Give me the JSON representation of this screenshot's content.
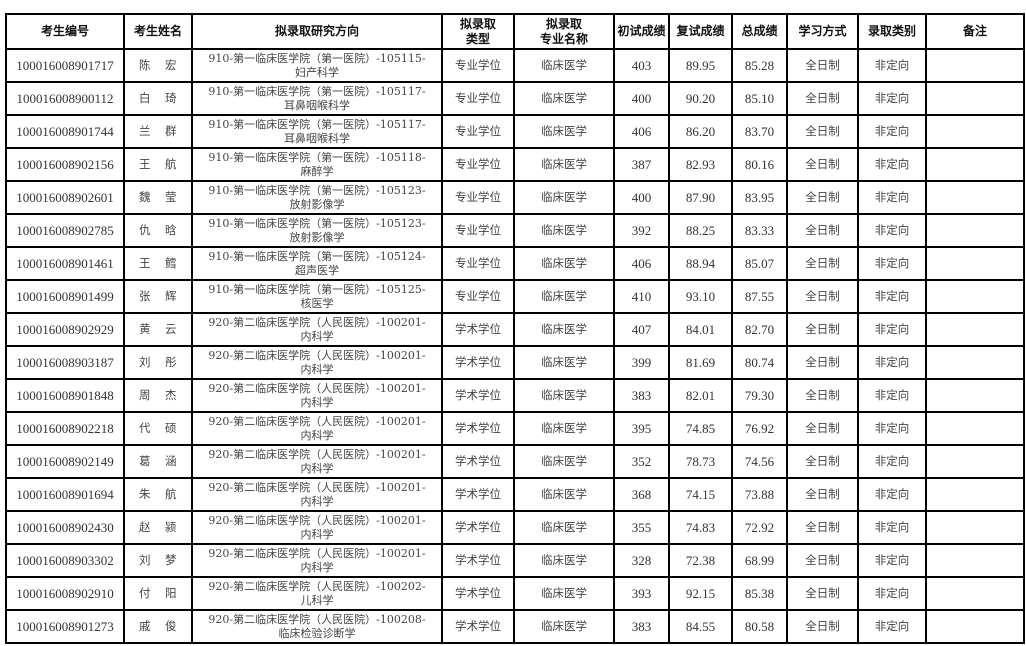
{
  "headers": [
    "考生编号",
    "考生姓名",
    "拟录取研究方向",
    "拟录取\n类型",
    "拟录取\n专业名称",
    "初试成绩",
    "复试成绩",
    "总成绩",
    "学习方式",
    "录取类别",
    "备注"
  ],
  "rows": [
    {
      "id": "100016008901717",
      "surname": "陈",
      "given": "宏",
      "dir1": "910-第一临床医学院（第一医院）-105115-",
      "dir2": "妇产科学",
      "type": "专业学位",
      "major": "临床医学",
      "init": "403",
      "re": "89.95",
      "total": "85.28",
      "mode": "全日制",
      "cat": "非定向",
      "note": ""
    },
    {
      "id": "100016008900112",
      "surname": "白",
      "given": "琦",
      "dir1": "910-第一临床医学院（第一医院）-105117-",
      "dir2": "耳鼻咽喉科学",
      "type": "专业学位",
      "major": "临床医学",
      "init": "400",
      "re": "90.20",
      "total": "85.10",
      "mode": "全日制",
      "cat": "非定向",
      "note": ""
    },
    {
      "id": "100016008901744",
      "surname": "兰",
      "given": "群",
      "dir1": "910-第一临床医学院（第一医院）-105117-",
      "dir2": "耳鼻咽喉科学",
      "type": "专业学位",
      "major": "临床医学",
      "init": "406",
      "re": "86.20",
      "total": "83.70",
      "mode": "全日制",
      "cat": "非定向",
      "note": ""
    },
    {
      "id": "100016008902156",
      "surname": "王",
      "given": "航",
      "dir1": "910-第一临床医学院（第一医院）-105118-",
      "dir2": "麻醉学",
      "type": "专业学位",
      "major": "临床医学",
      "init": "387",
      "re": "82.93",
      "total": "80.16",
      "mode": "全日制",
      "cat": "非定向",
      "note": ""
    },
    {
      "id": "100016008902601",
      "surname": "魏",
      "given": "莹",
      "dir1": "910-第一临床医学院（第一医院）-105123-",
      "dir2": "放射影像学",
      "type": "专业学位",
      "major": "临床医学",
      "init": "400",
      "re": "87.90",
      "total": "83.95",
      "mode": "全日制",
      "cat": "非定向",
      "note": ""
    },
    {
      "id": "100016008902785",
      "surname": "仇",
      "given": "晗",
      "dir1": "910-第一临床医学院（第一医院）-105123-",
      "dir2": "放射影像学",
      "type": "专业学位",
      "major": "临床医学",
      "init": "392",
      "re": "88.25",
      "total": "83.33",
      "mode": "全日制",
      "cat": "非定向",
      "note": ""
    },
    {
      "id": "100016008901461",
      "surname": "王",
      "given": "鳕",
      "dir1": "910-第一临床医学院（第一医院）-105124-",
      "dir2": "超声医学",
      "type": "专业学位",
      "major": "临床医学",
      "init": "406",
      "re": "88.94",
      "total": "85.07",
      "mode": "全日制",
      "cat": "非定向",
      "note": ""
    },
    {
      "id": "100016008901499",
      "surname": "张",
      "given": "辉",
      "dir1": "910-第一临床医学院（第一医院）-105125-",
      "dir2": "核医学",
      "type": "专业学位",
      "major": "临床医学",
      "init": "410",
      "re": "93.10",
      "total": "87.55",
      "mode": "全日制",
      "cat": "非定向",
      "note": ""
    },
    {
      "id": "100016008902929",
      "surname": "黄",
      "given": "云",
      "dir1": "920-第二临床医学院（人民医院）-100201-",
      "dir2": "内科学",
      "type": "学术学位",
      "major": "临床医学",
      "init": "407",
      "re": "84.01",
      "total": "82.70",
      "mode": "全日制",
      "cat": "非定向",
      "note": ""
    },
    {
      "id": "100016008903187",
      "surname": "刘",
      "given": "彤",
      "dir1": "920-第二临床医学院（人民医院）-100201-",
      "dir2": "内科学",
      "type": "学术学位",
      "major": "临床医学",
      "init": "399",
      "re": "81.69",
      "total": "80.74",
      "mode": "全日制",
      "cat": "非定向",
      "note": ""
    },
    {
      "id": "100016008901848",
      "surname": "周",
      "given": "杰",
      "dir1": "920-第二临床医学院（人民医院）-100201-",
      "dir2": "内科学",
      "type": "学术学位",
      "major": "临床医学",
      "init": "383",
      "re": "82.01",
      "total": "79.30",
      "mode": "全日制",
      "cat": "非定向",
      "note": ""
    },
    {
      "id": "100016008902218",
      "surname": "代",
      "given": "硕",
      "dir1": "920-第二临床医学院（人民医院）-100201-",
      "dir2": "内科学",
      "type": "学术学位",
      "major": "临床医学",
      "init": "395",
      "re": "74.85",
      "total": "76.92",
      "mode": "全日制",
      "cat": "非定向",
      "note": ""
    },
    {
      "id": "100016008902149",
      "surname": "葛",
      "given": "涵",
      "dir1": "920-第二临床医学院（人民医院）-100201-",
      "dir2": "内科学",
      "type": "学术学位",
      "major": "临床医学",
      "init": "352",
      "re": "78.73",
      "total": "74.56",
      "mode": "全日制",
      "cat": "非定向",
      "note": ""
    },
    {
      "id": "100016008901694",
      "surname": "朱",
      "given": "航",
      "dir1": "920-第二临床医学院（人民医院）-100201-",
      "dir2": "内科学",
      "type": "学术学位",
      "major": "临床医学",
      "init": "368",
      "re": "74.15",
      "total": "73.88",
      "mode": "全日制",
      "cat": "非定向",
      "note": ""
    },
    {
      "id": "100016008902430",
      "surname": "赵",
      "given": "颍",
      "dir1": "920-第二临床医学院（人民医院）-100201-",
      "dir2": "内科学",
      "type": "学术学位",
      "major": "临床医学",
      "init": "355",
      "re": "74.83",
      "total": "72.92",
      "mode": "全日制",
      "cat": "非定向",
      "note": ""
    },
    {
      "id": "100016008903302",
      "surname": "刘",
      "given": "梦",
      "dir1": "920-第二临床医学院（人民医院）-100201-",
      "dir2": "内科学",
      "type": "学术学位",
      "major": "临床医学",
      "init": "328",
      "re": "72.38",
      "total": "68.99",
      "mode": "全日制",
      "cat": "非定向",
      "note": ""
    },
    {
      "id": "100016008902910",
      "surname": "付",
      "given": "阳",
      "dir1": "920-第二临床医学院（人民医院）-100202-",
      "dir2": "儿科学",
      "type": "学术学位",
      "major": "临床医学",
      "init": "393",
      "re": "92.15",
      "total": "85.38",
      "mode": "全日制",
      "cat": "非定向",
      "note": ""
    },
    {
      "id": "100016008901273",
      "surname": "戚",
      "given": "俊",
      "dir1": "920-第二临床医学院（人民医院）-100208-",
      "dir2": "临床检验诊断学",
      "type": "学术学位",
      "major": "临床医学",
      "init": "383",
      "re": "84.55",
      "total": "80.58",
      "mode": "全日制",
      "cat": "非定向",
      "note": ""
    }
  ]
}
